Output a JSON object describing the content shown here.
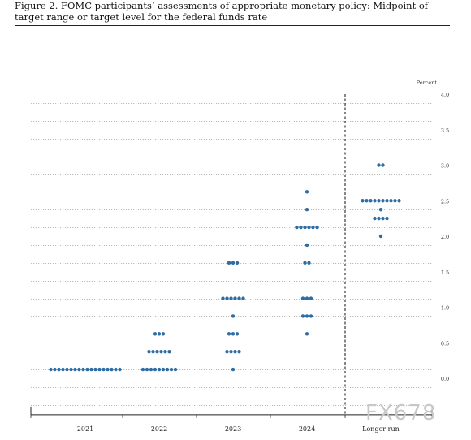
{
  "figure": {
    "title": "Figure 2.  FOMC participants’ assessments of appropriate monetary policy:  Midpoint of target range or target level for the federal funds rate"
  },
  "watermark": "FX678",
  "chart_data": {
    "type": "scatter",
    "ylabel": "Percent",
    "ylim": [
      -0.375,
      4.0
    ],
    "yticks": [
      "0.0",
      "0.5",
      "1.0",
      "1.5",
      "2.0",
      "2.5",
      "3.0",
      "3.5",
      "4.0"
    ],
    "categories": [
      "2021",
      "2022",
      "2023",
      "2024",
      "Longer run"
    ],
    "grid": true,
    "dot_color": "#2e6da4",
    "dots": [
      {
        "x": "2021",
        "y": 0.125,
        "count": 18
      },
      {
        "x": "2022",
        "y": 0.125,
        "count": 9
      },
      {
        "x": "2022",
        "y": 0.375,
        "count": 6
      },
      {
        "x": "2022",
        "y": 0.625,
        "count": 3
      },
      {
        "x": "2023",
        "y": 0.125,
        "count": 1
      },
      {
        "x": "2023",
        "y": 0.375,
        "count": 4
      },
      {
        "x": "2023",
        "y": 0.625,
        "count": 3
      },
      {
        "x": "2023",
        "y": 0.875,
        "count": 1
      },
      {
        "x": "2023",
        "y": 1.125,
        "count": 6
      },
      {
        "x": "2023",
        "y": 1.625,
        "count": 3
      },
      {
        "x": "2024",
        "y": 0.625,
        "count": 1
      },
      {
        "x": "2024",
        "y": 0.875,
        "count": 3
      },
      {
        "x": "2024",
        "y": 1.125,
        "count": 3
      },
      {
        "x": "2024",
        "y": 1.625,
        "count": 2
      },
      {
        "x": "2024",
        "y": 1.875,
        "count": 1
      },
      {
        "x": "2024",
        "y": 2.125,
        "count": 6
      },
      {
        "x": "2024",
        "y": 2.375,
        "count": 1
      },
      {
        "x": "2024",
        "y": 2.625,
        "count": 1
      },
      {
        "x": "Longer run",
        "y": 2.0,
        "count": 1
      },
      {
        "x": "Longer run",
        "y": 2.25,
        "count": 4
      },
      {
        "x": "Longer run",
        "y": 2.375,
        "count": 1
      },
      {
        "x": "Longer run",
        "y": 2.5,
        "count": 10
      },
      {
        "x": "Longer run",
        "y": 3.0,
        "count": 2
      }
    ]
  }
}
